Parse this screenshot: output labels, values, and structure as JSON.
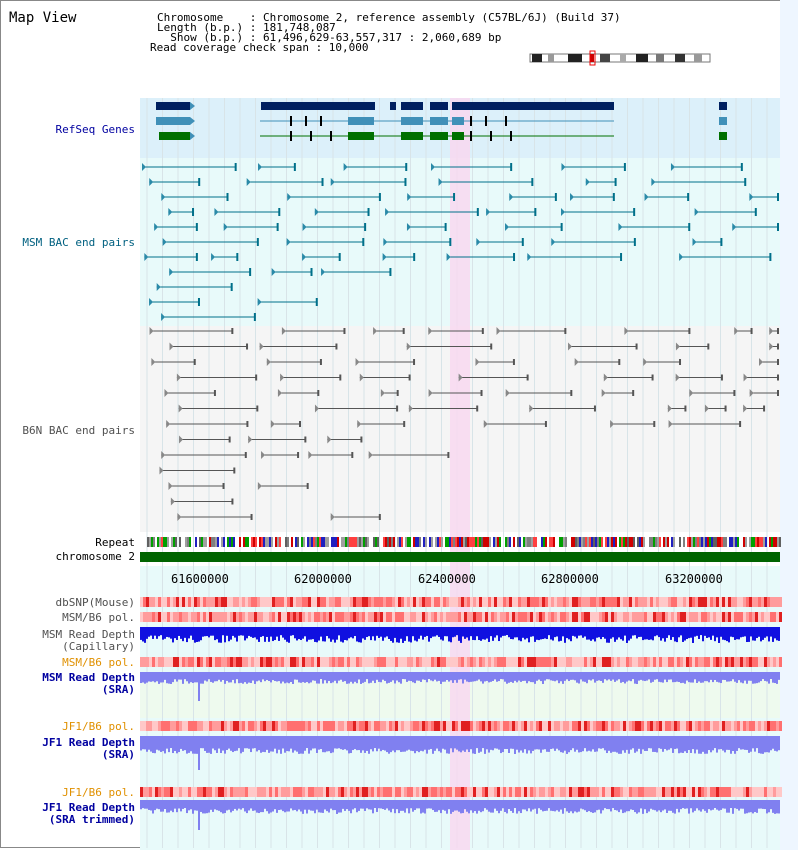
{
  "panel_title": "Map View",
  "info": {
    "lines": [
      "Chromosome    : Chromosome 2, reference assembly (C57BL/6J) (Build 37)",
      "Length (b.p.) : 181,748,087",
      "  Show (b.p.) : 61,496,629-63,557,317 : 2,060,689 bp",
      "Read coverage check span : 10,000"
    ]
  },
  "tracks": {
    "refseq": "RefSeq Genes",
    "msm_bac": "MSM BAC end pairs",
    "b6n_bac": "B6N BAC end pairs",
    "repeat": "Repeat",
    "chromosome": "chromosome 2",
    "dbsnp": "dbSNP(Mouse)",
    "msm_b6_pol_1": "MSM/B6 pol.",
    "msm_read_depth_cap": "MSM Read Depth\n(Capillary)",
    "msm_b6_pol_2": "MSM/B6 pol.",
    "msm_read_depth_sra": "MSM Read Depth\n(SRA)",
    "jf1_b6_pol_1": "JF1/B6 pol.",
    "jf1_read_depth_sra": "JF1 Read Depth\n(SRA)",
    "jf1_b6_pol_2": "JF1/B6 pol.",
    "jf1_read_depth_trim": "JF1 Read Depth\n(SRA trimmed)"
  },
  "axis": {
    "ticks": [
      "61600000",
      "62000000",
      "62400000",
      "62800000",
      "63200000"
    ]
  },
  "colors": {
    "refseq_bg": "#dcf0fa",
    "msm_bg": "#e8fafa",
    "b6n_bg": "#f5f5f5",
    "sra_bg": "#eefaee",
    "highlight": "#f8d8f0",
    "gene_dark": "#002060",
    "gene_mid": "#4090b8",
    "gene_green": "#007000",
    "chromosome": "#006400",
    "depth_cap": "#1010e0",
    "depth_sra": "#8080f0",
    "label_blue": "#0000a0",
    "label_orange": "#e09000",
    "label_teal": "#006080"
  }
}
